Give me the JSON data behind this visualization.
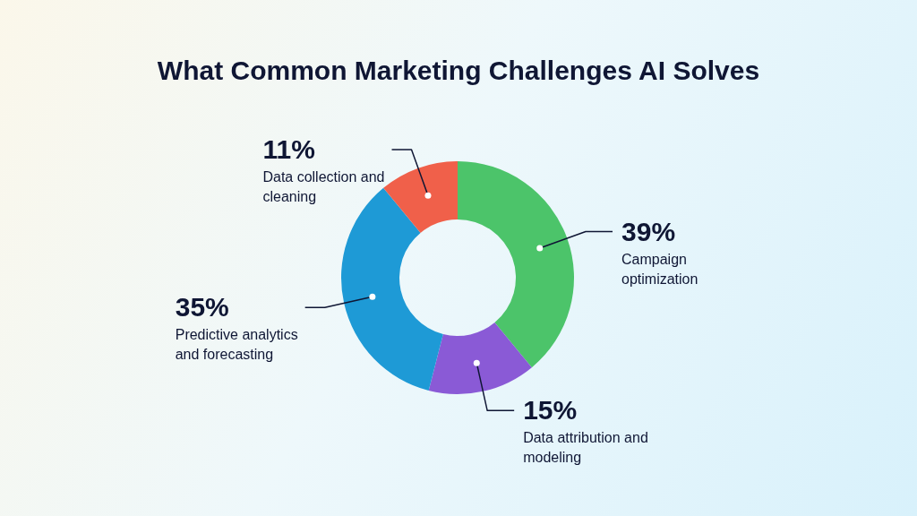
{
  "chart_data": {
    "type": "donut",
    "title": "What Common Marketing Challenges AI Solves",
    "categories": [
      "Campaign optimization",
      "Data attribution and modeling",
      "Predictive analytics and forecasting",
      "Data collection and cleaning"
    ],
    "values": [
      39,
      15,
      35,
      11
    ],
    "value_labels": [
      "39%",
      "15%",
      "35%",
      "11%"
    ],
    "colors": [
      "#4cc46a",
      "#8a5ad6",
      "#1e9ad6",
      "#f0604a"
    ],
    "legend": false
  }
}
